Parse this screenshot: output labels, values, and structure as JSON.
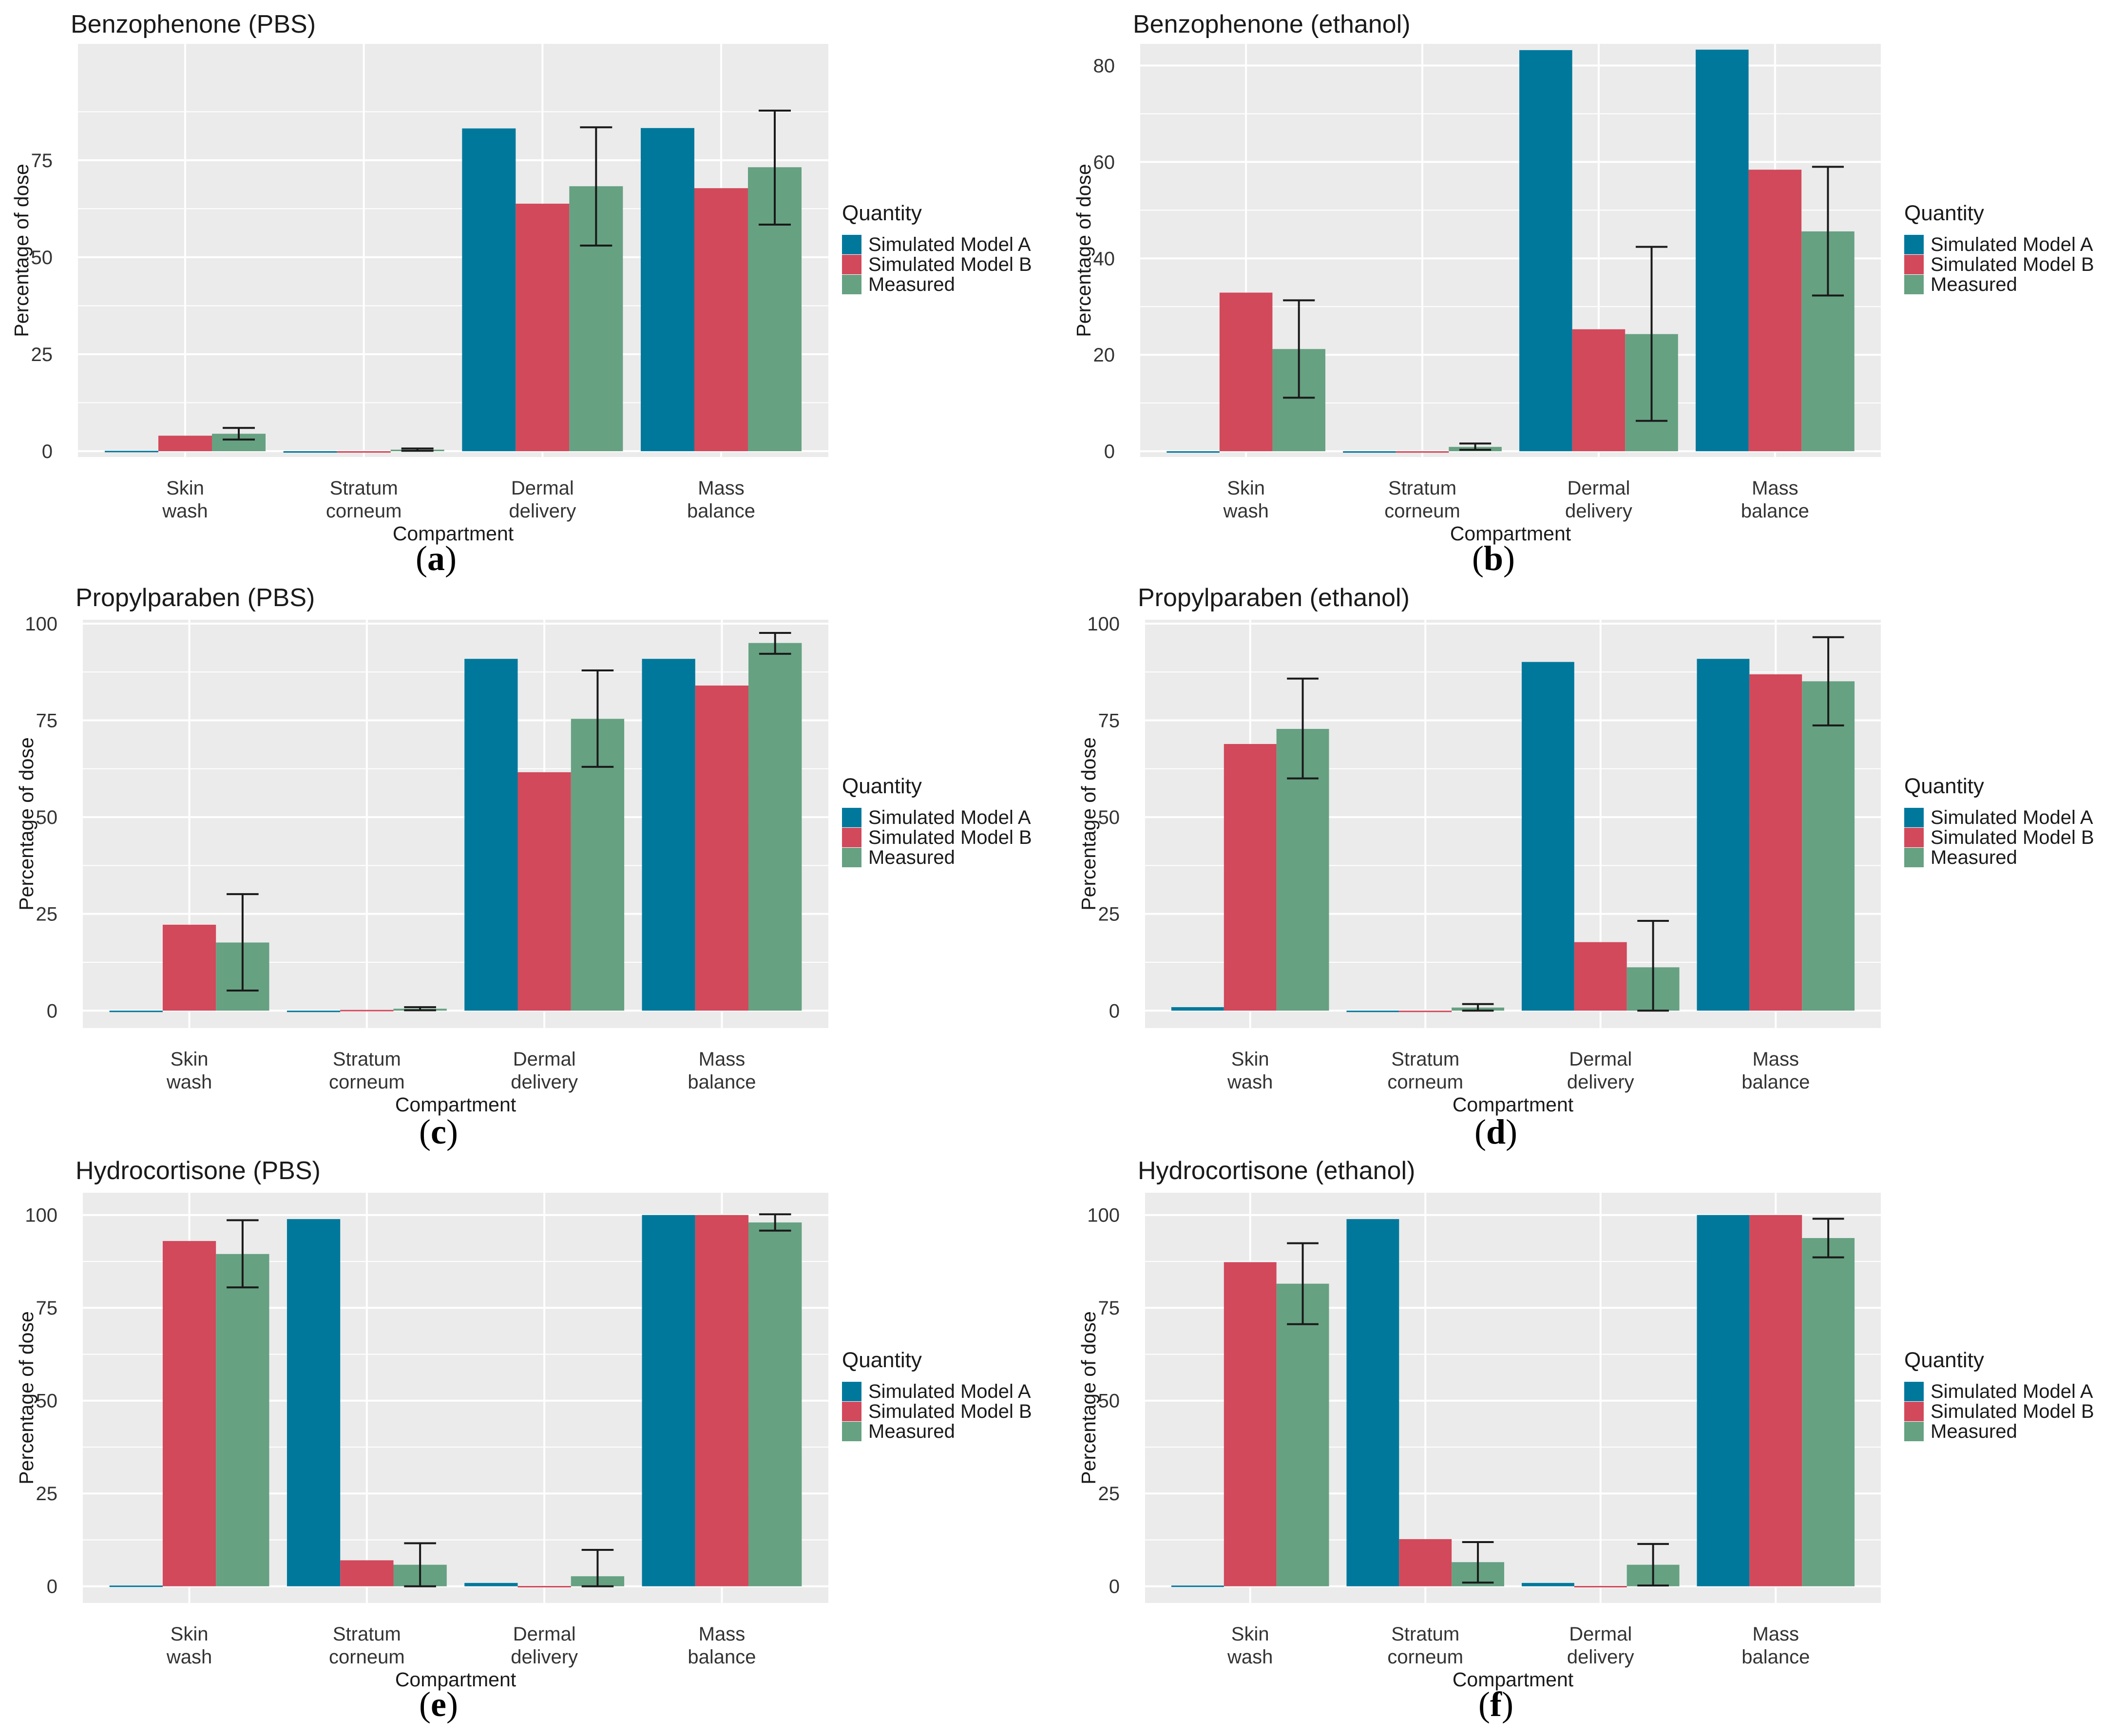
{
  "colors": {
    "model_a": "#00789c",
    "model_b": "#d1495b",
    "measured": "#66a182",
    "panel_bg": "#ebebeb",
    "grid": "#ffffff",
    "error_bar": "#1a1a1a"
  },
  "legend": {
    "title": "Quantity",
    "items": [
      "Simulated Model A",
      "Simulated Model B",
      "Measured"
    ]
  },
  "chart_data": [
    {
      "panel": "a",
      "type": "bar",
      "title": "Benzophenone (PBS)",
      "xlabel": "Compartment",
      "ylabel": "Percentage of dose",
      "categories": [
        [
          "Skin",
          "wash"
        ],
        [
          "Stratum",
          "corneum"
        ],
        [
          "Dermal",
          "delivery"
        ],
        [
          "Mass",
          "balance"
        ]
      ],
      "ylim": [
        -1.5,
        105
      ],
      "yticks": [
        0,
        25,
        50,
        75
      ],
      "series": [
        {
          "name": "Simulated Model A",
          "values": [
            0.1,
            0,
            83.2,
            83.3
          ]
        },
        {
          "name": "Simulated Model B",
          "values": [
            4.0,
            0,
            63.8,
            67.8
          ]
        },
        {
          "name": "Measured",
          "values": [
            4.5,
            0.4,
            68.3,
            73.2
          ],
          "err_low": [
            3.0,
            0.1,
            53.0,
            58.4
          ],
          "err_high": [
            6.0,
            0.7,
            83.5,
            87.8
          ]
        }
      ]
    },
    {
      "panel": "b",
      "type": "bar",
      "title": "Benzophenone (ethanol)",
      "xlabel": "Compartment",
      "ylabel": "Percentage of dose",
      "categories": [
        [
          "Skin",
          "wash"
        ],
        [
          "Stratum",
          "corneum"
        ],
        [
          "Dermal",
          "delivery"
        ],
        [
          "Mass",
          "balance"
        ]
      ],
      "ylim": [
        -1.2,
        84.5
      ],
      "yticks": [
        0,
        20,
        40,
        60,
        80
      ],
      "series": [
        {
          "name": "Simulated Model A",
          "values": [
            0,
            0,
            83.2,
            83.3
          ]
        },
        {
          "name": "Simulated Model B",
          "values": [
            32.9,
            0,
            25.3,
            58.4
          ]
        },
        {
          "name": "Measured",
          "values": [
            21.2,
            0.9,
            24.3,
            45.6
          ],
          "err_low": [
            11.1,
            0.3,
            6.3,
            32.3
          ],
          "err_high": [
            31.3,
            1.6,
            42.4,
            59.0
          ]
        }
      ]
    },
    {
      "panel": "c",
      "type": "bar",
      "title": "Propylparaben (PBS)",
      "xlabel": "Compartment",
      "ylabel": "Percentage of dose",
      "categories": [
        [
          "Skin",
          "wash"
        ],
        [
          "Stratum",
          "corneum"
        ],
        [
          "Dermal",
          "delivery"
        ],
        [
          "Mass",
          "balance"
        ]
      ],
      "ylim": [
        -4.5,
        101
      ],
      "yticks": [
        0,
        25,
        50,
        75,
        100
      ],
      "series": [
        {
          "name": "Simulated Model A",
          "values": [
            0,
            0,
            90.9,
            90.9
          ]
        },
        {
          "name": "Simulated Model B",
          "values": [
            22.2,
            0.2,
            61.6,
            84.0
          ]
        },
        {
          "name": "Measured",
          "values": [
            17.6,
            0.5,
            75.4,
            95.0
          ],
          "err_low": [
            5.2,
            0.1,
            63.0,
            92.2
          ],
          "err_high": [
            30.1,
            0.9,
            87.9,
            97.6
          ]
        }
      ]
    },
    {
      "panel": "d",
      "type": "bar",
      "title": "Propylparaben (ethanol)",
      "xlabel": "Compartment",
      "ylabel": "Percentage of dose",
      "categories": [
        [
          "Skin",
          "wash"
        ],
        [
          "Stratum",
          "corneum"
        ],
        [
          "Dermal",
          "delivery"
        ],
        [
          "Mass",
          "balance"
        ]
      ],
      "ylim": [
        -4.5,
        101
      ],
      "yticks": [
        0,
        25,
        50,
        75,
        100
      ],
      "series": [
        {
          "name": "Simulated Model A",
          "values": [
            0.9,
            0,
            90.1,
            90.9
          ]
        },
        {
          "name": "Simulated Model B",
          "values": [
            68.9,
            0,
            17.7,
            86.9
          ]
        },
        {
          "name": "Measured",
          "values": [
            72.8,
            0.8,
            11.2,
            85.1
          ],
          "err_low": [
            60.0,
            0.0,
            0.0,
            73.7
          ],
          "err_high": [
            85.8,
            1.7,
            23.2,
            96.5
          ]
        }
      ]
    },
    {
      "panel": "e",
      "type": "bar",
      "title": "Hydrocortisone (PBS)",
      "xlabel": "Compartment",
      "ylabel": "Percentage of dose",
      "categories": [
        [
          "Skin",
          "wash"
        ],
        [
          "Stratum",
          "corneum"
        ],
        [
          "Dermal",
          "delivery"
        ],
        [
          "Mass",
          "balance"
        ]
      ],
      "ylim": [
        -4.5,
        106
      ],
      "yticks": [
        0,
        25,
        50,
        75,
        100
      ],
      "series": [
        {
          "name": "Simulated Model A",
          "values": [
            0.2,
            98.9,
            0.9,
            100
          ]
        },
        {
          "name": "Simulated Model B",
          "values": [
            93.0,
            7.0,
            0.1,
            100
          ]
        },
        {
          "name": "Measured",
          "values": [
            89.5,
            5.8,
            2.7,
            98.0
          ],
          "err_low": [
            80.5,
            0.0,
            0.0,
            95.8
          ],
          "err_high": [
            98.6,
            11.6,
            9.8,
            100.2
          ]
        }
      ]
    },
    {
      "panel": "f",
      "type": "bar",
      "title": "Hydrocortisone (ethanol)",
      "xlabel": "Compartment",
      "ylabel": "Percentage of dose",
      "categories": [
        [
          "Skin",
          "wash"
        ],
        [
          "Stratum",
          "corneum"
        ],
        [
          "Dermal",
          "delivery"
        ],
        [
          "Mass",
          "balance"
        ]
      ],
      "ylim": [
        -4.5,
        106
      ],
      "yticks": [
        0,
        25,
        50,
        75,
        100
      ],
      "series": [
        {
          "name": "Simulated Model A",
          "values": [
            0.2,
            98.9,
            0.9,
            100
          ]
        },
        {
          "name": "Simulated Model B",
          "values": [
            87.3,
            12.7,
            0.1,
            100
          ]
        },
        {
          "name": "Measured",
          "values": [
            81.5,
            6.5,
            5.8,
            93.8
          ],
          "err_low": [
            70.6,
            1.0,
            0.2,
            88.6
          ],
          "err_high": [
            92.4,
            11.9,
            11.4,
            99.0
          ]
        }
      ]
    }
  ]
}
